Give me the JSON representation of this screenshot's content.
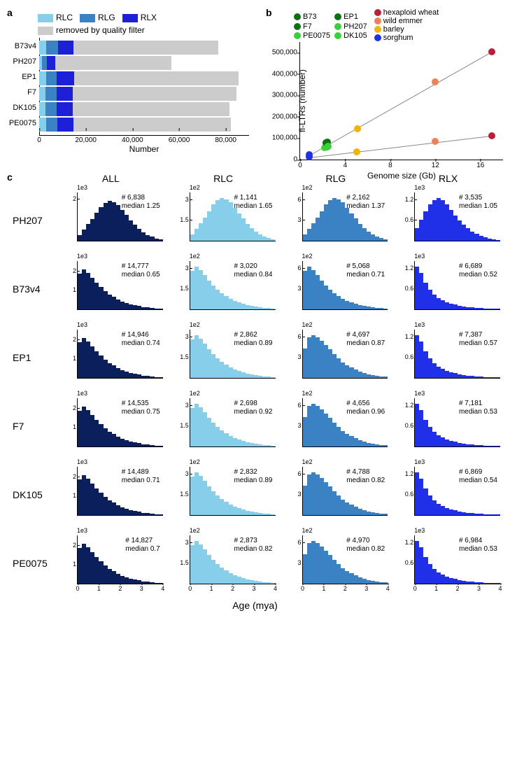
{
  "colors": {
    "rlc": "#87ceeb",
    "rlg": "#3a82c4",
    "rlx": "#1e20d8",
    "removed": "#cccccc",
    "all_hist": "#0a1f5c",
    "rlc_hist": "#87ceeb",
    "rlg_hist": "#3a82c4",
    "rlx_hist": "#2030e8",
    "maize_dark": "#0d7012",
    "maize_light": "#3ccf3c",
    "hex_wheat": "#b82038",
    "wild_emmer": "#f0805a",
    "barley": "#f2b40a",
    "sorghum": "#2030e8",
    "axis": "#000000",
    "line_grey": "#808080"
  },
  "panel_a": {
    "label": "a",
    "legend": [
      {
        "label": "RLC",
        "color_key": "rlc"
      },
      {
        "label": "RLG",
        "color_key": "rlg"
      },
      {
        "label": "RLX",
        "color_key": "rlx"
      },
      {
        "label": "removed by quality filter",
        "color_key": "removed"
      }
    ],
    "xmax": 90000,
    "xticks": [
      0,
      20000,
      40000,
      60000,
      80000
    ],
    "xtick_labels": [
      "0",
      "20,000",
      "40,000",
      "60,000",
      "80,000"
    ],
    "xlabel": "Number",
    "rows": [
      {
        "name": "B73v4",
        "rlc": 3020,
        "rlg": 5068,
        "rlx": 6689,
        "removed": 62000
      },
      {
        "name": "PH207",
        "rlc": 1141,
        "rlg": 2162,
        "rlx": 3535,
        "removed": 50000
      },
      {
        "name": "EP1",
        "rlc": 2862,
        "rlg": 4697,
        "rlx": 7387,
        "removed": 70500
      },
      {
        "name": "F7",
        "rlc": 2698,
        "rlg": 4656,
        "rlx": 7181,
        "removed": 70200
      },
      {
        "name": "DK105",
        "rlc": 2832,
        "rlg": 4788,
        "rlx": 6869,
        "removed": 67000
      },
      {
        "name": "PE0075",
        "rlc": 2873,
        "rlg": 4970,
        "rlx": 6984,
        "removed": 67500
      }
    ]
  },
  "panel_b": {
    "label": "b",
    "legend_left": [
      {
        "label": "B73",
        "color_key": "maize_dark"
      },
      {
        "label": "EP1",
        "color_key": "maize_dark"
      },
      {
        "label": "F7",
        "color_key": "maize_dark"
      },
      {
        "label": "PH207",
        "color_key": "maize_light"
      },
      {
        "label": "PE0075",
        "color_key": "maize_light"
      },
      {
        "label": "DK105",
        "color_key": "maize_light"
      }
    ],
    "legend_right": [
      {
        "label": "hexaploid wheat",
        "color_key": "hex_wheat"
      },
      {
        "label": "wild emmer",
        "color_key": "wild_emmer"
      },
      {
        "label": "barley",
        "color_key": "barley"
      },
      {
        "label": "sorghum",
        "color_key": "sorghum"
      }
    ],
    "xmax": 18,
    "xmin": 0,
    "ymax": 550000,
    "ymin": 0,
    "xticks": [
      0,
      4,
      8,
      12,
      16
    ],
    "yticks": [
      0,
      100000,
      200000,
      300000,
      400000,
      500000
    ],
    "ytick_labels": [
      "0",
      "100,000",
      "200,000",
      "300,000",
      "400,000",
      "500,000"
    ],
    "xlabel": "Genome size (Gb)",
    "ylabel": "fl-LTRs (number)",
    "points": [
      {
        "x": 0.8,
        "y": 12000,
        "color_key": "sorghum"
      },
      {
        "x": 0.8,
        "y": 22000,
        "color_key": "sorghum"
      },
      {
        "x": 2.2,
        "y": 55000,
        "color_key": "maize_light"
      },
      {
        "x": 2.3,
        "y": 78000,
        "color_key": "maize_dark"
      },
      {
        "x": 2.3,
        "y": 80000,
        "color_key": "maize_dark"
      },
      {
        "x": 2.4,
        "y": 82000,
        "color_key": "maize_dark"
      },
      {
        "x": 2.4,
        "y": 60000,
        "color_key": "maize_light"
      },
      {
        "x": 2.5,
        "y": 62000,
        "color_key": "maize_light"
      },
      {
        "x": 5.0,
        "y": 35000,
        "color_key": "barley"
      },
      {
        "x": 5.1,
        "y": 145000,
        "color_key": "barley"
      },
      {
        "x": 12.0,
        "y": 85000,
        "color_key": "wild_emmer"
      },
      {
        "x": 12.0,
        "y": 365000,
        "color_key": "wild_emmer"
      },
      {
        "x": 17.0,
        "y": 112000,
        "color_key": "hex_wheat"
      },
      {
        "x": 17.0,
        "y": 505000,
        "color_key": "hex_wheat"
      }
    ],
    "lines": [
      {
        "x1": 0.8,
        "y1": 20000,
        "x2": 17.0,
        "y2": 505000
      },
      {
        "x1": 0.8,
        "y1": 10000,
        "x2": 17.0,
        "y2": 112000
      }
    ]
  },
  "panel_c": {
    "label": "c",
    "columns": [
      "ALL",
      "RLC",
      "RLG",
      "RLX"
    ],
    "xlabel": "Age (mya)",
    "xmax": 4,
    "xticks": [
      0,
      1,
      2,
      3,
      4
    ],
    "rows": [
      {
        "name": "PH207",
        "cells": [
          {
            "color_key": "all_hist",
            "scale": "1e3",
            "ymax": 2.3,
            "yticks": [
              2
            ],
            "count": "6,838",
            "median": "1.25",
            "shape": "mound"
          },
          {
            "color_key": "rlc_hist",
            "scale": "1e2",
            "ymax": 3.5,
            "yticks": [
              1.5,
              3.0
            ],
            "count": "1,141",
            "median": "1.65",
            "shape": "mound"
          },
          {
            "color_key": "rlg_hist",
            "scale": "1e2",
            "ymax": 7,
            "yticks": [
              3,
              6
            ],
            "count": "2,162",
            "median": "1.37",
            "shape": "mound"
          },
          {
            "color_key": "rlx_hist",
            "scale": "1e3",
            "ymax": 1.4,
            "yticks": [
              0.6,
              1.2
            ],
            "count": "3,535",
            "median": "1.05",
            "shape": "mound_low"
          }
        ]
      },
      {
        "name": "B73v4",
        "cells": [
          {
            "color_key": "all_hist",
            "scale": "1e3",
            "ymax": 2.5,
            "yticks": [
              1,
              2
            ],
            "count": "14,777",
            "median": "0.65",
            "shape": "decay"
          },
          {
            "color_key": "rlc_hist",
            "scale": "1e2",
            "ymax": 3.5,
            "yticks": [
              1.5,
              3.0
            ],
            "count": "3,020",
            "median": "0.84",
            "shape": "decay"
          },
          {
            "color_key": "rlg_hist",
            "scale": "1e2",
            "ymax": 7,
            "yticks": [
              3,
              6
            ],
            "count": "5,068",
            "median": "0.71",
            "shape": "decay"
          },
          {
            "color_key": "rlx_hist",
            "scale": "1e3",
            "ymax": 1.4,
            "yticks": [
              0.6,
              1.2
            ],
            "count": "6,689",
            "median": "0.52",
            "shape": "decay_steep"
          }
        ]
      },
      {
        "name": "EP1",
        "cells": [
          {
            "color_key": "all_hist",
            "scale": "1e3",
            "ymax": 2.5,
            "yticks": [
              1,
              2
            ],
            "count": "14,946",
            "median": "0.74",
            "shape": "decay"
          },
          {
            "color_key": "rlc_hist",
            "scale": "1e2",
            "ymax": 3.5,
            "yticks": [
              1.5,
              3.0
            ],
            "count": "2,862",
            "median": "0.89",
            "shape": "decay"
          },
          {
            "color_key": "rlg_hist",
            "scale": "1e2",
            "ymax": 7,
            "yticks": [
              3,
              6
            ],
            "count": "4,697",
            "median": "0.87",
            "shape": "decay_broad"
          },
          {
            "color_key": "rlx_hist",
            "scale": "1e3",
            "ymax": 1.4,
            "yticks": [
              0.6,
              1.2
            ],
            "count": "7,387",
            "median": "0.57",
            "shape": "decay_steep"
          }
        ]
      },
      {
        "name": "F7",
        "cells": [
          {
            "color_key": "all_hist",
            "scale": "1e3",
            "ymax": 2.5,
            "yticks": [
              1,
              2
            ],
            "count": "14,535",
            "median": "0.75",
            "shape": "decay"
          },
          {
            "color_key": "rlc_hist",
            "scale": "1e2",
            "ymax": 3.5,
            "yticks": [
              1.5,
              3.0
            ],
            "count": "2,698",
            "median": "0.92",
            "shape": "decay"
          },
          {
            "color_key": "rlg_hist",
            "scale": "1e2",
            "ymax": 7,
            "yticks": [
              3,
              6
            ],
            "count": "4,656",
            "median": "0.96",
            "shape": "decay_broad"
          },
          {
            "color_key": "rlx_hist",
            "scale": "1e3",
            "ymax": 1.4,
            "yticks": [
              0.6,
              1.2
            ],
            "count": "7,181",
            "median": "0.53",
            "shape": "decay_steep"
          }
        ]
      },
      {
        "name": "DK105",
        "cells": [
          {
            "color_key": "all_hist",
            "scale": "1e3",
            "ymax": 2.5,
            "yticks": [
              1,
              2
            ],
            "count": "14,489",
            "median": "0.71",
            "shape": "decay"
          },
          {
            "color_key": "rlc_hist",
            "scale": "1e2",
            "ymax": 3.5,
            "yticks": [
              1.5,
              3.0
            ],
            "count": "2,832",
            "median": "0.89",
            "shape": "decay"
          },
          {
            "color_key": "rlg_hist",
            "scale": "1e2",
            "ymax": 7,
            "yticks": [
              3,
              6
            ],
            "count": "4,788",
            "median": "0.82",
            "shape": "decay_broad"
          },
          {
            "color_key": "rlx_hist",
            "scale": "1e3",
            "ymax": 1.4,
            "yticks": [
              0.6,
              1.2
            ],
            "count": "6,869",
            "median": "0.54",
            "shape": "decay_steep"
          }
        ]
      },
      {
        "name": "PE0075",
        "cells": [
          {
            "color_key": "all_hist",
            "scale": "1e3",
            "ymax": 2.5,
            "yticks": [
              1,
              2
            ],
            "count": "14,827",
            "median": "0.7",
            "shape": "decay"
          },
          {
            "color_key": "rlc_hist",
            "scale": "1e2",
            "ymax": 3.5,
            "yticks": [
              1.5,
              3.0
            ],
            "count": "2,873",
            "median": "0.82",
            "shape": "decay"
          },
          {
            "color_key": "rlg_hist",
            "scale": "1e2",
            "ymax": 7,
            "yticks": [
              3,
              6
            ],
            "count": "4,970",
            "median": "0.82",
            "shape": "decay_broad"
          },
          {
            "color_key": "rlx_hist",
            "scale": "1e3",
            "ymax": 1.4,
            "yticks": [
              0.6,
              1.2
            ],
            "count": "6,984",
            "median": "0.53",
            "shape": "decay_steep"
          }
        ]
      }
    ],
    "shapes": {
      "mound": [
        0.15,
        0.28,
        0.42,
        0.55,
        0.7,
        0.85,
        0.95,
        1.0,
        0.98,
        0.9,
        0.78,
        0.65,
        0.52,
        0.4,
        0.3,
        0.22,
        0.15,
        0.1,
        0.06,
        0.03
      ],
      "mound_low": [
        0.3,
        0.5,
        0.7,
        0.85,
        0.95,
        1.0,
        0.95,
        0.85,
        0.72,
        0.6,
        0.48,
        0.38,
        0.3,
        0.22,
        0.16,
        0.12,
        0.08,
        0.05,
        0.03,
        0.02
      ],
      "decay": [
        0.9,
        1.0,
        0.92,
        0.8,
        0.68,
        0.56,
        0.46,
        0.38,
        0.31,
        0.25,
        0.2,
        0.16,
        0.13,
        0.1,
        0.08,
        0.06,
        0.045,
        0.035,
        0.025,
        0.02
      ],
      "decay_steep": [
        1.0,
        0.85,
        0.62,
        0.46,
        0.35,
        0.27,
        0.21,
        0.17,
        0.14,
        0.11,
        0.09,
        0.07,
        0.055,
        0.045,
        0.035,
        0.028,
        0.022,
        0.018,
        0.014,
        0.01
      ],
      "decay_broad": [
        0.7,
        0.95,
        1.0,
        0.95,
        0.88,
        0.78,
        0.67,
        0.56,
        0.46,
        0.37,
        0.3,
        0.24,
        0.19,
        0.15,
        0.12,
        0.09,
        0.07,
        0.05,
        0.035,
        0.025
      ]
    }
  }
}
